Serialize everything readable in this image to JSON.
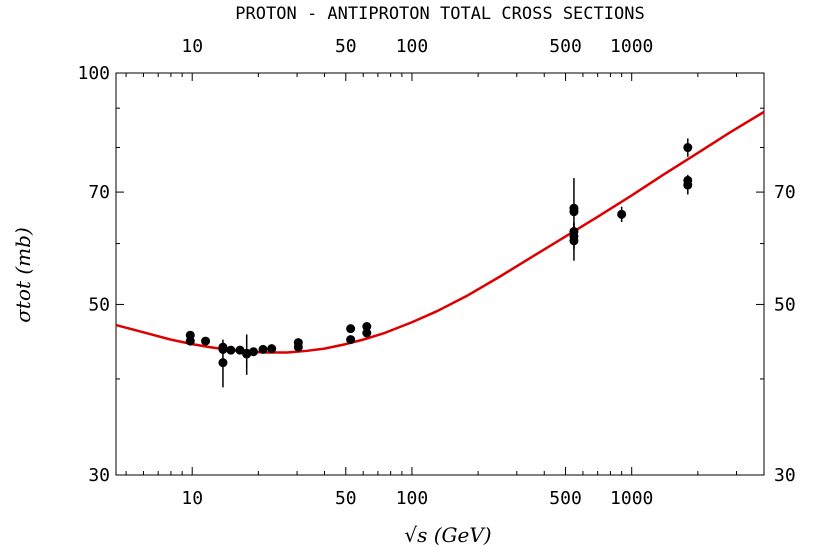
{
  "chart_data": {
    "type": "scatter",
    "title": "PROTON - ANTIPROTON TOTAL CROSS SECTIONS",
    "xlabel": "√s (GeV)",
    "ylabel": "σtot (mb)",
    "xscale": "log",
    "yscale": "log",
    "xlim": [
      4.5,
      4000
    ],
    "ylim": [
      30,
      100
    ],
    "x_ticks": [
      10,
      50,
      100,
      500,
      1000
    ],
    "x_tick_labels": [
      "10",
      "50",
      "100",
      "500",
      "1000"
    ],
    "y_ticks_left": [
      30,
      50,
      70,
      100
    ],
    "y_ticks_left_labels": [
      "30",
      "50",
      "70",
      "100"
    ],
    "y_ticks_right": [
      30,
      50,
      70
    ],
    "y_ticks_right_labels": [
      "30",
      "50",
      "70"
    ],
    "grid": false,
    "colors": {
      "data": "#000000",
      "fit": "#dd0000"
    },
    "series": [
      {
        "type": "scatter",
        "points": [
          {
            "x": 9.8,
            "y": 45.6,
            "yerr": 0.5
          },
          {
            "x": 9.8,
            "y": 44.8,
            "yerr": 0.4
          },
          {
            "x": 11.5,
            "y": 44.8,
            "yerr": 0.3
          },
          {
            "x": 13.8,
            "y": 44.0,
            "yerr": 0.6
          },
          {
            "x": 13.8,
            "y": 43.7,
            "yerr": 0.5
          },
          {
            "x": 13.8,
            "y": 42.0,
            "yerr": 3.0
          },
          {
            "x": 15.0,
            "y": 43.6,
            "yerr": 0.3
          },
          {
            "x": 16.5,
            "y": 43.6,
            "yerr": 0.3
          },
          {
            "x": 17.7,
            "y": 43.2,
            "yerr": 0.5
          },
          {
            "x": 17.7,
            "y": 43.1,
            "yerr": 2.6
          },
          {
            "x": 19.0,
            "y": 43.4,
            "yerr": 0.3
          },
          {
            "x": 21.0,
            "y": 43.7,
            "yerr": 0.3
          },
          {
            "x": 23.0,
            "y": 43.8,
            "yerr": 0.3
          },
          {
            "x": 30.4,
            "y": 44.0,
            "yerr": 0.3
          },
          {
            "x": 30.4,
            "y": 44.6,
            "yerr": 0.3
          },
          {
            "x": 52.6,
            "y": 45.0,
            "yerr": 0.3
          },
          {
            "x": 52.6,
            "y": 46.5,
            "yerr": 0.3
          },
          {
            "x": 62.3,
            "y": 45.9,
            "yerr": 0.3
          },
          {
            "x": 62.3,
            "y": 46.8,
            "yerr": 0.3
          },
          {
            "x": 546,
            "y": 66.0,
            "yerr": 7.0
          },
          {
            "x": 546,
            "y": 66.7,
            "yerr": 0.5
          },
          {
            "x": 546,
            "y": 62.2,
            "yerr": 1.5
          },
          {
            "x": 546,
            "y": 61.3,
            "yerr": 0.5
          },
          {
            "x": 546,
            "y": 60.5,
            "yerr": 3.5
          },
          {
            "x": 900,
            "y": 65.5,
            "yerr": 1.5
          },
          {
            "x": 1800,
            "y": 80.0,
            "yerr": 2.2
          },
          {
            "x": 1800,
            "y": 72.5,
            "yerr": 1.2
          },
          {
            "x": 1800,
            "y": 71.5,
            "yerr": 2.0
          }
        ]
      },
      {
        "type": "line",
        "x": [
          4.5,
          6,
          8,
          10,
          12,
          15,
          18,
          22,
          27,
          33,
          40,
          50,
          60,
          75,
          100,
          130,
          180,
          250,
          350,
          500,
          700,
          1000,
          1400,
          2000,
          2800,
          4000
        ],
        "y": [
          47.0,
          46.0,
          45.0,
          44.4,
          44.0,
          43.6,
          43.4,
          43.3,
          43.3,
          43.5,
          43.8,
          44.4,
          45.0,
          45.9,
          47.4,
          49.0,
          51.4,
          54.3,
          57.6,
          61.3,
          65.0,
          69.3,
          73.8,
          78.7,
          83.7,
          89.0
        ]
      }
    ]
  }
}
